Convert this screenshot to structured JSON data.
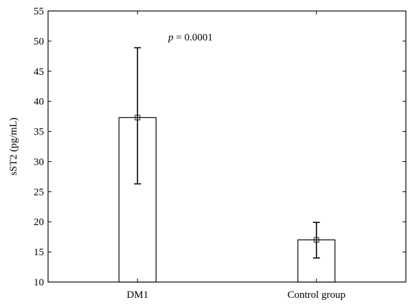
{
  "chart_data": {
    "type": "bar",
    "title": "",
    "xlabel": "",
    "ylabel": "sST2 (pg/mL)",
    "ylim": [
      10,
      55
    ],
    "yticks": [
      10,
      15,
      20,
      25,
      30,
      35,
      40,
      45,
      50,
      55
    ],
    "categories": [
      "DM1",
      "Control group"
    ],
    "series": [
      {
        "values": [
          37.3,
          17.0
        ],
        "error_low": [
          26.3,
          14.0
        ],
        "error_high": [
          48.9,
          19.9
        ]
      }
    ],
    "annotation": {
      "italic": "p",
      "text": " = 0.0001"
    },
    "grid": false,
    "colors": {
      "bar_fill": "#ffffff",
      "stroke": "#000000"
    }
  }
}
